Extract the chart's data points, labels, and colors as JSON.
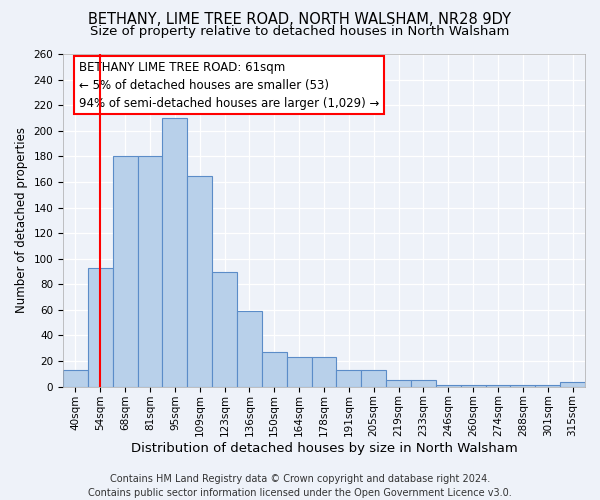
{
  "title": "BETHANY, LIME TREE ROAD, NORTH WALSHAM, NR28 9DY",
  "subtitle": "Size of property relative to detached houses in North Walsham",
  "xlabel": "Distribution of detached houses by size in North Walsham",
  "ylabel": "Number of detached properties",
  "bin_labels": [
    "40sqm",
    "54sqm",
    "68sqm",
    "81sqm",
    "95sqm",
    "109sqm",
    "123sqm",
    "136sqm",
    "150sqm",
    "164sqm",
    "178sqm",
    "191sqm",
    "205sqm",
    "219sqm",
    "233sqm",
    "246sqm",
    "260sqm",
    "274sqm",
    "288sqm",
    "301sqm",
    "315sqm"
  ],
  "bar_values": [
    13,
    93,
    180,
    180,
    210,
    165,
    90,
    59,
    27,
    23,
    23,
    13,
    13,
    5,
    5,
    1,
    1,
    1,
    1,
    1,
    4
  ],
  "bar_color": "#b8d0ea",
  "bar_edge_color": "#5b8cc8",
  "vline_x": 1,
  "vline_color": "red",
  "annotation_line1": "BETHANY LIME TREE ROAD: 61sqm",
  "annotation_line2": "← 5% of detached houses are smaller (53)",
  "annotation_line3": "94% of semi-detached houses are larger (1,029) →",
  "ylim": [
    0,
    260
  ],
  "yticks": [
    0,
    20,
    40,
    60,
    80,
    100,
    120,
    140,
    160,
    180,
    200,
    220,
    240,
    260
  ],
  "background_color": "#eef2f9",
  "grid_color": "#ffffff",
  "footer_line1": "Contains HM Land Registry data © Crown copyright and database right 2024.",
  "footer_line2": "Contains public sector information licensed under the Open Government Licence v3.0.",
  "title_fontsize": 10.5,
  "subtitle_fontsize": 9.5,
  "xlabel_fontsize": 9.5,
  "ylabel_fontsize": 8.5,
  "tick_fontsize": 7.5,
  "annotation_fontsize": 8.5,
  "footer_fontsize": 7
}
